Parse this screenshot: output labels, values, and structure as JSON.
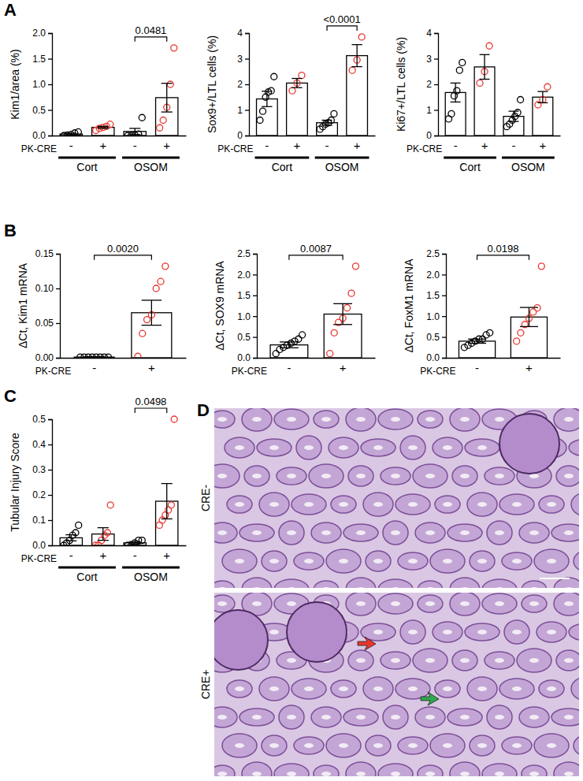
{
  "chart_data": [
    {
      "type": "bar",
      "panel": "A",
      "ylabel": "Kim1/area (%)",
      "xlabel": "PK-CRE",
      "categories": [
        "-",
        "+",
        "-",
        "+"
      ],
      "groups": [
        "Cort",
        "OSOM"
      ],
      "values": [
        0.03,
        0.16,
        0.08,
        0.74
      ],
      "errors": [
        0.015,
        0.02,
        0.06,
        0.28
      ],
      "points": [
        [
          0.0,
          0.01,
          0.02,
          0.05,
          0.07
        ],
        [
          0.1,
          0.14,
          0.16,
          0.18,
          0.22
        ],
        [
          0.0,
          0.0,
          0.01,
          0.03,
          0.35
        ],
        [
          0.15,
          0.3,
          0.55,
          1.0,
          1.71
        ]
      ],
      "colors": [
        "#000000",
        "#e8372f",
        "#000000",
        "#e8372f"
      ],
      "ylim": [
        0,
        2
      ],
      "yticks": [
        {
          "value": 0,
          "label": "0.0"
        },
        0.5,
        {
          "value": 1,
          "label": "1.0"
        },
        1.5,
        {
          "value": 2,
          "label": "2.0"
        }
      ],
      "annotations": [
        {
          "text": "0.0481",
          "from": 2,
          "to": 3
        }
      ]
    },
    {
      "type": "bar",
      "ylabel": "Sox9+/LTL cells (%)",
      "xlabel": "PK-CRE",
      "categories": [
        "-",
        "+",
        "-",
        "+"
      ],
      "groups": [
        "Cort",
        "OSOM"
      ],
      "values": [
        1.43,
        2.05,
        0.5,
        3.12
      ],
      "errors": [
        0.3,
        0.18,
        0.1,
        0.43
      ],
      "points": [
        [
          0.6,
          0.95,
          1.5,
          1.7,
          1.75,
          2.3
        ],
        [
          1.75,
          2.05,
          2.35
        ],
        [
          0.25,
          0.35,
          0.45,
          0.5,
          0.6,
          0.85
        ],
        [
          2.55,
          2.95,
          3.85
        ]
      ],
      "colors": [
        "#000000",
        "#e8372f",
        "#000000",
        "#e8372f"
      ],
      "ylim": [
        0,
        4
      ],
      "yticks": [
        0,
        1,
        2,
        3,
        4
      ],
      "annotations": [
        {
          "text": "<0.0001",
          "from": 2,
          "to": 3
        }
      ]
    },
    {
      "type": "bar",
      "ylabel": "Ki67+/LTL cells (%)",
      "xlabel": "PK-CRE",
      "categories": [
        "-",
        "+",
        "-",
        "+"
      ],
      "groups": [
        "Cort",
        "OSOM"
      ],
      "values": [
        1.68,
        2.68,
        0.75,
        1.5
      ],
      "errors": [
        0.37,
        0.48,
        0.2,
        0.22
      ],
      "points": [
        [
          0.65,
          0.85,
          1.55,
          1.75,
          2.55,
          2.85
        ],
        [
          2.05,
          2.5,
          3.5
        ],
        [
          0.35,
          0.45,
          0.6,
          0.75,
          0.9,
          1.4
        ],
        [
          1.2,
          1.4,
          1.9
        ]
      ],
      "colors": [
        "#000000",
        "#e8372f",
        "#000000",
        "#e8372f"
      ],
      "ylim": [
        0,
        4
      ],
      "yticks": [
        0,
        1,
        2,
        3,
        4
      ]
    },
    {
      "type": "bar",
      "panel": "B",
      "ylabel": "ΔCt, Kim1 mRNA",
      "xlabel": "PK-CRE",
      "categories": [
        "-",
        "+"
      ],
      "values": [
        0.001,
        0.065
      ],
      "errors": [
        0.0005,
        0.018
      ],
      "points": [
        [
          0.001,
          0.001,
          0.001,
          0.001,
          0.001,
          0.001,
          0.001,
          0.001
        ],
        [
          0.002,
          0.035,
          0.055,
          0.062,
          0.1,
          0.11,
          0.132
        ]
      ],
      "colors": [
        "#000000",
        "#e8372f"
      ],
      "ylim": [
        0,
        0.15
      ],
      "yticks": [
        {
          "value": 0,
          "label": "0.00"
        },
        0.05,
        {
          "value": 0.1,
          "label": "0.10"
        },
        0.15
      ],
      "annotations": [
        {
          "text": "0.0020",
          "from": 0,
          "to": 1
        }
      ]
    },
    {
      "type": "bar",
      "ylabel": "ΔCt, SOX9 mRNA",
      "xlabel": "PK-CRE",
      "categories": [
        "-",
        "+"
      ],
      "values": [
        0.31,
        1.05
      ],
      "errors": [
        0.07,
        0.25
      ],
      "points": [
        [
          0.1,
          0.2,
          0.25,
          0.3,
          0.35,
          0.4,
          0.45,
          0.55
        ],
        [
          0.1,
          0.6,
          0.85,
          0.95,
          1.2,
          1.55,
          2.2
        ]
      ],
      "colors": [
        "#000000",
        "#e8372f"
      ],
      "ylim": [
        0,
        2.5
      ],
      "yticks": [
        {
          "value": 0,
          "label": "0.0"
        },
        0.5,
        {
          "value": 1,
          "label": "1.0"
        },
        1.5,
        {
          "value": 2,
          "label": "2.0"
        },
        2.5
      ],
      "annotations": [
        {
          "text": "0.0087",
          "from": 0,
          "to": 1
        }
      ]
    },
    {
      "type": "bar",
      "ylabel": "ΔCt, FoxM1 mRNA",
      "xlabel": "PK-CRE",
      "categories": [
        "-",
        "+"
      ],
      "values": [
        0.4,
        0.98
      ],
      "errors": [
        0.05,
        0.23
      ],
      "points": [
        [
          0.25,
          0.3,
          0.35,
          0.4,
          0.45,
          0.45,
          0.55,
          0.6
        ],
        [
          0.4,
          0.6,
          0.8,
          0.95,
          1.1,
          1.2,
          2.2
        ]
      ],
      "colors": [
        "#000000",
        "#e8372f"
      ],
      "ylim": [
        0,
        2.5
      ],
      "yticks": [
        {
          "value": 0,
          "label": "0.0"
        },
        0.5,
        {
          "value": 1,
          "label": "1.0"
        },
        1.5,
        {
          "value": 2,
          "label": "2.0"
        },
        2.5
      ],
      "annotations": [
        {
          "text": "0.0198",
          "from": 0,
          "to": 1
        }
      ]
    },
    {
      "type": "bar",
      "panel": "C",
      "ylabel": "Tubular Injury Score",
      "xlabel": "PK-CRE",
      "categories": [
        "-",
        "+",
        "-",
        "+"
      ],
      "groups": [
        "Cort",
        "OSOM"
      ],
      "values": [
        0.03,
        0.045,
        0.01,
        0.175
      ],
      "errors": [
        0.012,
        0.025,
        0.005,
        0.07
      ],
      "points": [
        [
          0.0,
          0.01,
          0.02,
          0.04,
          0.05,
          0.08
        ],
        [
          0.0,
          0.0,
          0.02,
          0.04,
          0.05,
          0.16
        ],
        [
          0.0,
          0.0,
          0.01,
          0.02,
          0.02
        ],
        [
          0.08,
          0.1,
          0.12,
          0.14,
          0.16,
          0.5
        ]
      ],
      "colors": [
        "#000000",
        "#e8372f",
        "#000000",
        "#e8372f"
      ],
      "ylim": [
        0,
        0.5
      ],
      "yticks": [
        {
          "value": 0,
          "label": "0.0"
        },
        0.1,
        0.2,
        0.3,
        0.4,
        0.5
      ],
      "annotations": [
        {
          "text": "0.0498",
          "from": 2,
          "to": 3
        }
      ]
    }
  ],
  "image_panel": {
    "panel": "D",
    "labels": [
      "CRE-",
      "CRE+"
    ]
  }
}
